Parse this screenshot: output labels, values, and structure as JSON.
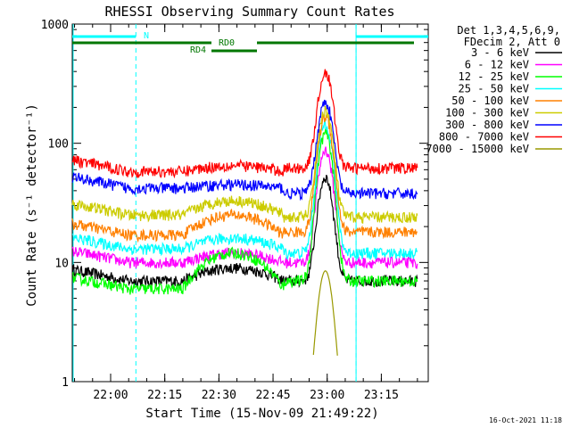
{
  "chart_data": {
    "type": "line",
    "title": "RHESSI Observing Summary Count Rates",
    "xlabel": "Start Time (15-Nov-09 21:49:22)",
    "ylabel": "Count Rate (s⁻¹ detector⁻¹)",
    "yscale": "log",
    "ylim": [
      1,
      1000
    ],
    "xlim_minutes": [
      21.817,
      23.467
    ],
    "x_ticks": [
      "22:00",
      "22:15",
      "22:30",
      "22:45",
      "23:00",
      "23:15"
    ],
    "y_ticks": [
      "1",
      "10",
      "100",
      "1000"
    ],
    "legend_header": [
      "Det 1,3,4,5,6,9,",
      "FDecim 2, Att 0"
    ],
    "legend_position": "top-right",
    "timestamp": "16-Oct-2021 11:18",
    "flag_labels": {
      "night": "N",
      "rd0": "RD0",
      "rd4": "RD4"
    },
    "night_periods": [
      {
        "start": "21:49",
        "end": "22:07"
      },
      {
        "start": "23:08",
        "end": "23:28"
      }
    ],
    "flare_peak_time": "23:00",
    "series": [
      {
        "name": "3 - 6 keV",
        "color": "#000000",
        "pre": 7,
        "mid": 9,
        "post": 7,
        "peak": 45
      },
      {
        "name": "6 - 12 keV",
        "color": "#ff00ff",
        "pre": 10,
        "mid": 12,
        "post": 10,
        "peak": 78
      },
      {
        "name": "12 - 25 keV",
        "color": "#00ff00",
        "pre": 6,
        "mid": 12,
        "post": 7,
        "peak": 115
      },
      {
        "name": "25 - 50 keV",
        "color": "#00ffff",
        "pre": 13,
        "mid": 16,
        "post": 12,
        "peak": 135
      },
      {
        "name": "50 - 100 keV",
        "color": "#ff8000",
        "pre": 17,
        "mid": 25,
        "post": 18,
        "peak": 150
      },
      {
        "name": "100 - 300 keV",
        "color": "#cccc00",
        "pre": 25,
        "mid": 33,
        "post": 24,
        "peak": 165
      },
      {
        "name": "300 - 800 keV",
        "color": "#0000ff",
        "pre": 42,
        "mid": 45,
        "post": 38,
        "peak": 185
      },
      {
        "name": "800 - 7000 keV",
        "color": "#ff0000",
        "pre": 58,
        "mid": 65,
        "post": 62,
        "peak": 330
      },
      {
        "name": "7000 - 15000 keV",
        "color": "#999900",
        "pre": null,
        "mid": null,
        "post": null,
        "peak": 8
      }
    ]
  }
}
